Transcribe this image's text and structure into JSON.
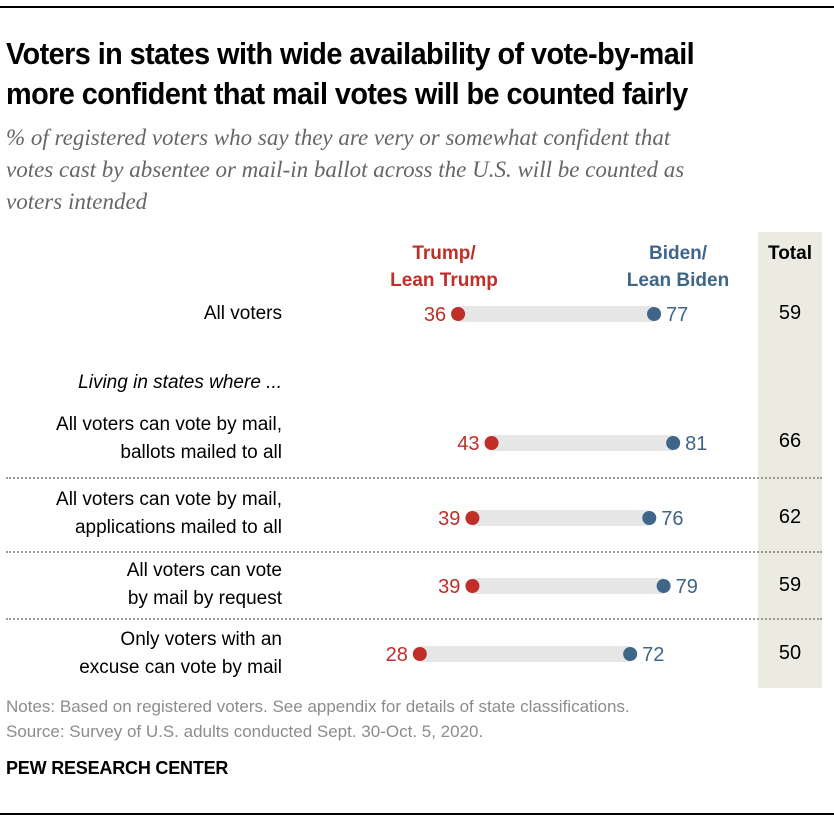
{
  "chart_data": {
    "type": "dot-range",
    "title": "Voters in states with wide availability of vote-by-mail more confident that mail votes will be counted fairly",
    "subtitle": "% of registered voters  who say they are very or somewhat confident that votes cast by absentee or mail-in ballot across the U.S. will be counted as voters intended",
    "title_lines": [
      "Voters in states with wide availability of vote-by-mail",
      "more confident that mail votes will be counted fairly"
    ],
    "subtitle_lines": [
      "% of registered voters  who say they are very or somewhat confident that",
      "votes cast by absentee or mail-in ballot across the U.S. will be counted as",
      "voters intended"
    ],
    "series": [
      {
        "name": "Trump/ Lean Trump",
        "label_lines": [
          "Trump/",
          "Lean Trump"
        ],
        "color": "#bf2f27",
        "values": [
          36,
          43,
          39,
          39,
          28
        ]
      },
      {
        "name": "Biden/ Lean Biden",
        "label_lines": [
          "Biden/",
          "Lean Biden"
        ],
        "color": "#3f6589",
        "values": [
          77,
          81,
          76,
          79,
          72
        ]
      }
    ],
    "total_header": "Total",
    "totals": [
      59,
      66,
      62,
      59,
      50
    ],
    "categories": [
      "All voters",
      "All voters can vote by mail, ballots mailed to all",
      "All voters can vote by  mail, applications mailed to all",
      "All voters can vote by mail by request",
      "Only voters with an excuse can vote by mail"
    ],
    "category_lines": [
      [
        "All voters"
      ],
      [
        "All voters can vote by mail,",
        "ballots mailed to all"
      ],
      [
        "All voters can vote by  mail,",
        "applications mailed to all"
      ],
      [
        "All voters can vote",
        "by mail by request"
      ],
      [
        "Only voters with an",
        "excuse can vote by mail"
      ]
    ],
    "section_label": "Living in states where ...",
    "range_color": "#e6e6e6",
    "total_band_color": "#ecebe1",
    "xlim": [
      0,
      100
    ],
    "notes": "Notes: Based on registered voters. See appendix for details of state classifications.",
    "source": "Source: Survey of U.S. adults conducted Sept. 30-Oct. 5, 2020.",
    "brand": "PEW RESEARCH CENTER"
  }
}
